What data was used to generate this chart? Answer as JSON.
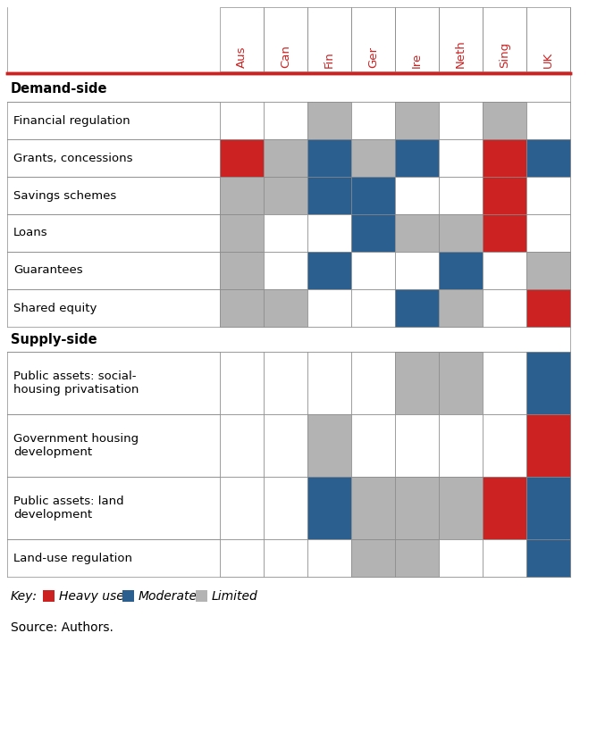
{
  "columns": [
    "Aus",
    "Can",
    "Fin",
    "Ger",
    "Ire",
    "Neth",
    "Sing",
    "UK"
  ],
  "col_header_color": "#cc2222",
  "heavy_color": "#cc2222",
  "moderate_color": "#2a5f8f",
  "limited_color": "#b3b3b3",
  "white_color": "#ffffff",
  "border_color": "#888888",
  "header_line_color": "#cc2222",
  "section_demand": "Demand-side",
  "section_supply": "Supply-side",
  "rows": [
    {
      "label": "Financial regulation",
      "cells": [
        "W",
        "W",
        "L",
        "W",
        "L",
        "W",
        "L",
        "W"
      ]
    },
    {
      "label": "Grants, concessions",
      "cells": [
        "H",
        "L",
        "M",
        "L",
        "M",
        "W",
        "H",
        "M"
      ]
    },
    {
      "label": "Savings schemes",
      "cells": [
        "L",
        "L",
        "M",
        "M",
        "W",
        "W",
        "H",
        "W"
      ]
    },
    {
      "label": "Loans",
      "cells": [
        "L",
        "W",
        "W",
        "M",
        "L",
        "L",
        "H",
        "W"
      ]
    },
    {
      "label": "Guarantees",
      "cells": [
        "L",
        "W",
        "M",
        "W",
        "W",
        "M",
        "W",
        "L"
      ]
    },
    {
      "label": "Shared equity",
      "cells": [
        "L",
        "L",
        "W",
        "W",
        "M",
        "L",
        "W",
        "H"
      ]
    },
    {
      "label": "Public assets: social-\nhousing privatisation",
      "cells": [
        "W",
        "W",
        "W",
        "W",
        "L",
        "L",
        "W",
        "M"
      ]
    },
    {
      "label": "Government housing\ndevelopment",
      "cells": [
        "W",
        "W",
        "L",
        "W",
        "W",
        "W",
        "W",
        "H"
      ]
    },
    {
      "label": "Public assets: land\ndevelopment",
      "cells": [
        "W",
        "W",
        "M",
        "L",
        "L",
        "L",
        "H",
        "M"
      ]
    },
    {
      "label": "Land-use regulation",
      "cells": [
        "W",
        "W",
        "W",
        "L",
        "L",
        "W",
        "W",
        "M"
      ]
    }
  ],
  "demand_rows": [
    0,
    1,
    2,
    3,
    4,
    5
  ],
  "supply_rows": [
    6,
    7,
    8,
    9
  ],
  "legend_items": [
    {
      "label": "Heavy use",
      "color": "#cc2222"
    },
    {
      "label": "Moderate",
      "color": "#2a5f8f"
    },
    {
      "label": "Limited",
      "color": "#b3b3b3"
    }
  ],
  "source_text": "Source: Authors.",
  "label_fontsize": 9.5,
  "header_fontsize": 9.5,
  "section_fontsize": 10.5,
  "legend_fontsize": 10,
  "source_fontsize": 10
}
